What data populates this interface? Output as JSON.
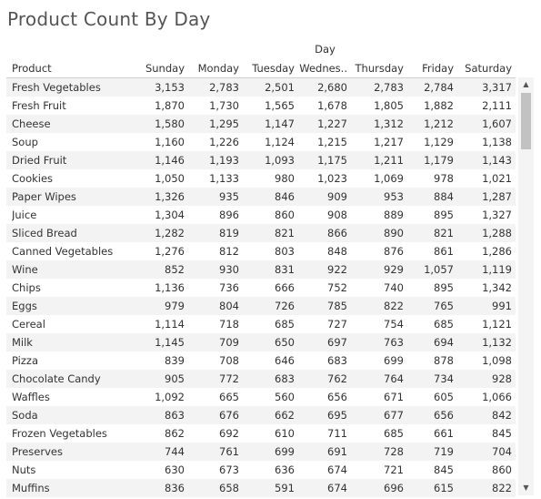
{
  "title": "Product Count By Day",
  "column_group": "Day",
  "headers": {
    "product": "Product",
    "days": [
      "Sunday",
      "Monday",
      "Tuesday",
      "Wednes..",
      "Thursday",
      "Friday",
      "Saturday"
    ]
  },
  "rows": [
    {
      "product": "Fresh Vegetables",
      "values": [
        "3,153",
        "2,783",
        "2,501",
        "2,680",
        "2,783",
        "2,784",
        "3,317"
      ]
    },
    {
      "product": "Fresh Fruit",
      "values": [
        "1,870",
        "1,730",
        "1,565",
        "1,678",
        "1,805",
        "1,882",
        "2,111"
      ]
    },
    {
      "product": "Cheese",
      "values": [
        "1,580",
        "1,295",
        "1,147",
        "1,227",
        "1,312",
        "1,212",
        "1,607"
      ]
    },
    {
      "product": "Soup",
      "values": [
        "1,160",
        "1,226",
        "1,124",
        "1,215",
        "1,217",
        "1,129",
        "1,138"
      ]
    },
    {
      "product": "Dried Fruit",
      "values": [
        "1,146",
        "1,193",
        "1,093",
        "1,175",
        "1,211",
        "1,179",
        "1,143"
      ]
    },
    {
      "product": "Cookies",
      "values": [
        "1,050",
        "1,133",
        "980",
        "1,023",
        "1,069",
        "978",
        "1,021"
      ]
    },
    {
      "product": "Paper Wipes",
      "values": [
        "1,326",
        "935",
        "846",
        "909",
        "953",
        "884",
        "1,287"
      ]
    },
    {
      "product": "Juice",
      "values": [
        "1,304",
        "896",
        "860",
        "908",
        "889",
        "895",
        "1,327"
      ]
    },
    {
      "product": "Sliced Bread",
      "values": [
        "1,282",
        "819",
        "821",
        "866",
        "890",
        "821",
        "1,288"
      ]
    },
    {
      "product": "Canned Vegetables",
      "values": [
        "1,276",
        "812",
        "803",
        "848",
        "876",
        "861",
        "1,286"
      ]
    },
    {
      "product": "Wine",
      "values": [
        "852",
        "930",
        "831",
        "922",
        "929",
        "1,057",
        "1,119"
      ]
    },
    {
      "product": "Chips",
      "values": [
        "1,136",
        "736",
        "666",
        "752",
        "740",
        "895",
        "1,342"
      ]
    },
    {
      "product": "Eggs",
      "values": [
        "979",
        "804",
        "726",
        "785",
        "822",
        "765",
        "991"
      ]
    },
    {
      "product": "Cereal",
      "values": [
        "1,114",
        "718",
        "685",
        "727",
        "754",
        "685",
        "1,121"
      ]
    },
    {
      "product": "Milk",
      "values": [
        "1,145",
        "709",
        "650",
        "697",
        "763",
        "694",
        "1,132"
      ]
    },
    {
      "product": "Pizza",
      "values": [
        "839",
        "708",
        "646",
        "683",
        "699",
        "878",
        "1,098"
      ]
    },
    {
      "product": "Chocolate Candy",
      "values": [
        "905",
        "772",
        "683",
        "762",
        "764",
        "734",
        "928"
      ]
    },
    {
      "product": "Waffles",
      "values": [
        "1,092",
        "665",
        "560",
        "656",
        "671",
        "605",
        "1,066"
      ]
    },
    {
      "product": "Soda",
      "values": [
        "863",
        "676",
        "662",
        "695",
        "677",
        "656",
        "842"
      ]
    },
    {
      "product": "Frozen Vegetables",
      "values": [
        "862",
        "692",
        "610",
        "711",
        "685",
        "661",
        "845"
      ]
    },
    {
      "product": "Preserves",
      "values": [
        "744",
        "761",
        "699",
        "691",
        "728",
        "719",
        "704"
      ]
    },
    {
      "product": "Nuts",
      "values": [
        "630",
        "673",
        "636",
        "674",
        "721",
        "845",
        "860"
      ]
    },
    {
      "product": "Muffins",
      "values": [
        "836",
        "658",
        "591",
        "674",
        "696",
        "615",
        "822"
      ]
    }
  ],
  "colors": {
    "row_alt": "#f3f3f3",
    "title": "#555555",
    "scroll_thumb": "#c2c2c2"
  },
  "icons": {
    "scroll_up": "triangle-up-icon",
    "scroll_down": "triangle-down-icon"
  }
}
